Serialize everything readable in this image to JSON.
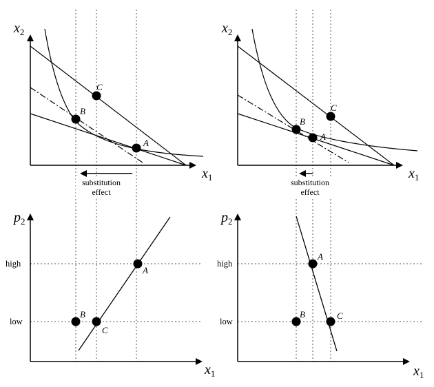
{
  "top_left": {
    "y_axis": {
      "var": "x",
      "sub": "2"
    },
    "x_axis": {
      "var": "x",
      "sub": "1"
    },
    "points": {
      "A": "A",
      "B": "B",
      "C": "C"
    },
    "arrow_label": [
      "substitution",
      "effect"
    ]
  },
  "top_right": {
    "y_axis": {
      "var": "x",
      "sub": "2"
    },
    "x_axis": {
      "var": "x",
      "sub": "1"
    },
    "points": {
      "A": "A",
      "B": "B",
      "C": "C"
    },
    "arrow_label": [
      "substitution",
      "effect"
    ]
  },
  "bottom_left": {
    "y_axis": {
      "var": "p",
      "sub": "2"
    },
    "x_axis": {
      "var": "x",
      "sub": "1"
    },
    "ticks": {
      "high": "high",
      "low": "low"
    },
    "points": {
      "A": "A",
      "B": "B",
      "C": "C"
    }
  },
  "bottom_right": {
    "y_axis": {
      "var": "p",
      "sub": "2"
    },
    "x_axis": {
      "var": "x",
      "sub": "1"
    },
    "ticks": {
      "high": "high",
      "low": "low"
    },
    "points": {
      "A": "A",
      "B": "B",
      "C": "C"
    }
  }
}
